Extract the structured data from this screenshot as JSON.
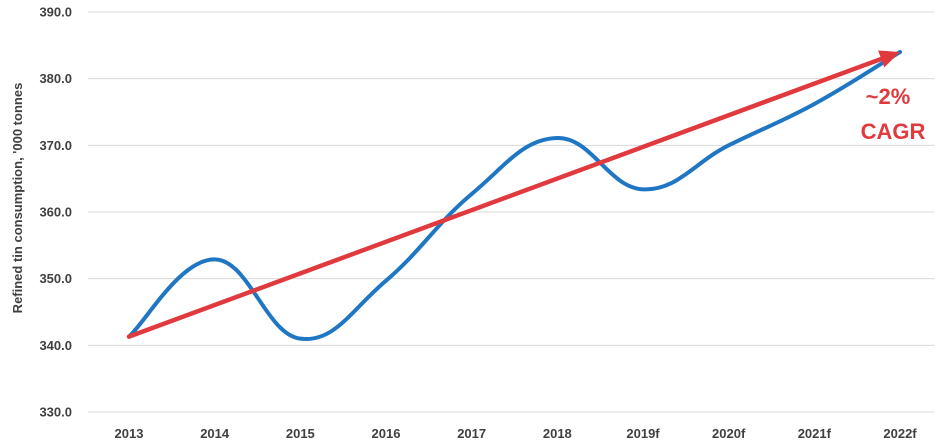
{
  "chart_data": {
    "type": "line",
    "title": "",
    "xlabel": "",
    "ylabel": "Refined tin consumption, '000 tonnes",
    "categories": [
      "2013",
      "2014",
      "2015",
      "2016",
      "2017",
      "2018",
      "2019f",
      "2020f",
      "2021f",
      "2022f"
    ],
    "series": [
      {
        "values": [
          341.3,
          352.9,
          341.0,
          349.7,
          362.7,
          371.1,
          363.4,
          370.0,
          376.2,
          384.0
        ]
      }
    ],
    "ylim": [
      330,
      390
    ],
    "yticks": [
      "330.0",
      "340.0",
      "350.0",
      "360.0",
      "370.0",
      "380.0",
      "390.0"
    ],
    "grid": true,
    "trend_arrow": {
      "from": [
        "2013",
        341.3
      ],
      "to": [
        "2022f",
        384.0
      ]
    },
    "annotation": {
      "line1": "~2%",
      "line2": "CAGR"
    },
    "colors": {
      "series": "#1f77c4",
      "trend": "#e03a3e",
      "grid": "#d9d9d9"
    }
  }
}
